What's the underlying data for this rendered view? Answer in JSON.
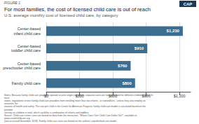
{
  "chart_data": {
    "type": "bar",
    "orientation": "horizontal",
    "title": "For most families, the cost of licensed child care is out of reach",
    "subtitle": "U.S. average monthly cost of licensed child care, by category",
    "annotations": [
      "FIGURE 1",
      "Notes: Because family child care programs operate as one single classroom, separate costs are not calculated for different children's ages. In most\nstates, regulations restrict family child care providers from enrolling more than two infants - or nonwalkers - unless they also employ an assistant, for\nreasons of health and safety. The cost per child in the Center for American Progress' family child care model is calculated based on the provider\nserving six children in total, which could be a combination of infants and toddlers.\nSource: Child care center costs are based on data from the interactive, \"Where Does Your Child Care Dollar Go?\", available at www.costofchildcare.org\n(last accessed November 2018). Family child care costs are based on the authors' unpublished cost model.",
      "CAP"
    ],
    "categories": [
      "Center-based\ninfant child care",
      "Center-based\ntoddler child care",
      "Center-based\npreschooler child care",
      "Family child care"
    ],
    "values": [
      1230,
      910,
      760,
      800
    ],
    "value_labels": [
      "$1,230",
      "$910",
      "$760",
      "$800"
    ],
    "data_labels": true,
    "color": "#3d6e8f",
    "xlim": [
      0,
      1300
    ],
    "xticks": [
      {
        "value": 0,
        "label": "$0"
      },
      {
        "value": 300,
        "label": "$300"
      },
      {
        "value": 600,
        "label": "$600"
      },
      {
        "value": 900,
        "label": "$900"
      },
      {
        "value": 1200,
        "label": "$1,200"
      }
    ],
    "grid": true
  }
}
